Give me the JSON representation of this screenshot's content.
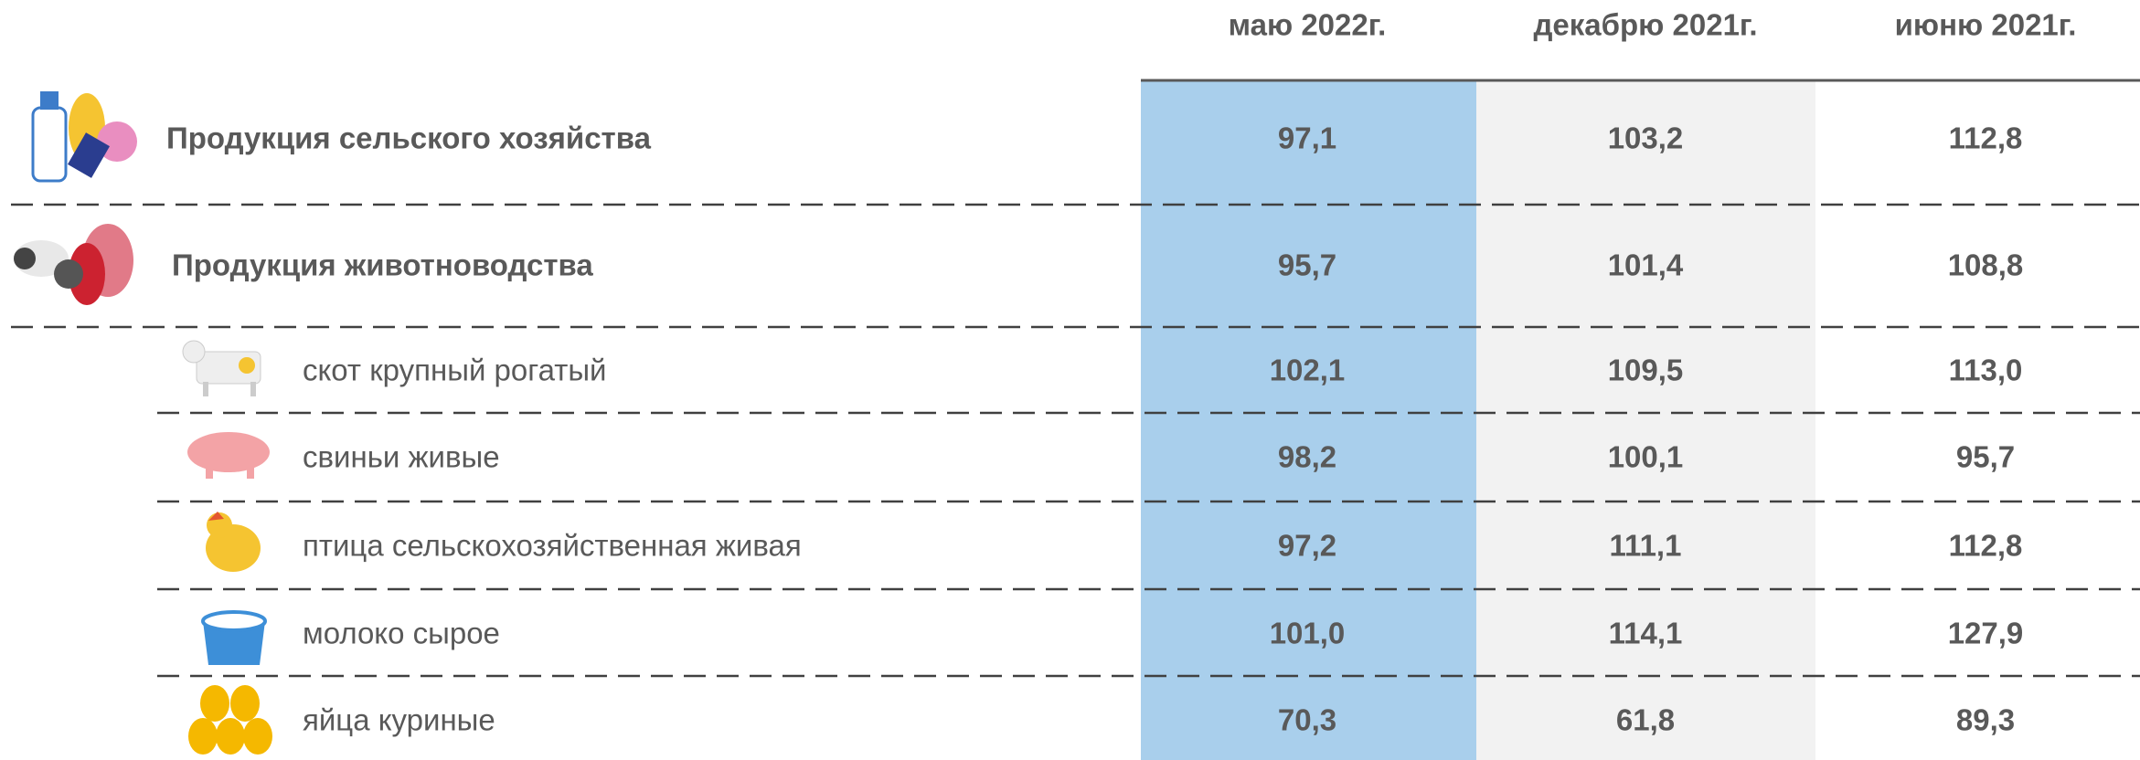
{
  "header": {
    "columns": [
      "маю 2022г.",
      "декабрю 2021г.",
      "июню 2021г."
    ]
  },
  "rows": [
    {
      "label": "Продукция сельского хозяйства",
      "values": [
        "97,1",
        "103,2",
        "112,8"
      ]
    },
    {
      "label": "Продукция животноводства",
      "values": [
        "95,7",
        "101,4",
        "108,8"
      ]
    },
    {
      "label": "скот крупный рогатый",
      "values": [
        "102,1",
        "109,5",
        "113,0"
      ]
    },
    {
      "label": "свиньи живые",
      "values": [
        "98,2",
        "100,1",
        "95,7"
      ]
    },
    {
      "label": "птица сельскохозяйственная живая",
      "values": [
        "97,2",
        "111,1",
        "112,8"
      ]
    },
    {
      "label": "молоко сырое",
      "values": [
        "101,0",
        "114,1",
        "127,9"
      ]
    },
    {
      "label": "яйца куриные",
      "values": [
        "70,3",
        "61,8",
        "89,3"
      ]
    }
  ]
}
